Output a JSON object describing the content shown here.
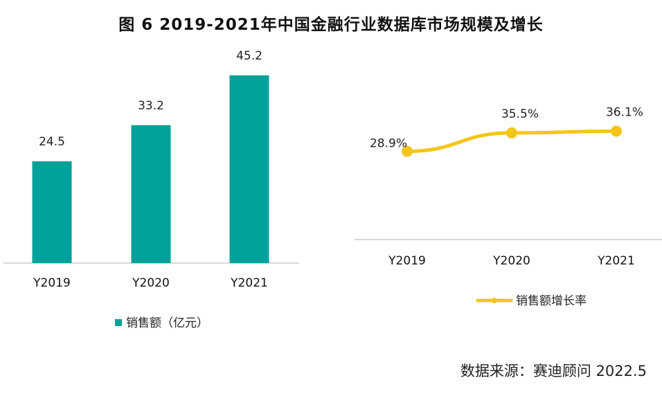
{
  "figure_title": "图 6  2019-2021年中国金融行业数据库市场规模及增长",
  "source_note": "数据来源：赛迪顾问  2022.5",
  "colors": {
    "bar": "#00a19a",
    "line": "#f5c518",
    "axis": "#cccccc"
  },
  "chart_data": [
    {
      "type": "bar",
      "categories": [
        "Y2019",
        "Y2020",
        "Y2021"
      ],
      "series": [
        {
          "name": "销售额（亿元）",
          "values": [
            24.5,
            33.2,
            45.2
          ],
          "labels": [
            "24.5",
            "33.2",
            "45.2"
          ]
        }
      ],
      "ylim": [
        0,
        50
      ],
      "grid": false,
      "legend": "bottom"
    },
    {
      "type": "line",
      "categories": [
        "Y2019",
        "Y2020",
        "Y2021"
      ],
      "series": [
        {
          "name": "销售额增长率",
          "values": [
            28.9,
            35.5,
            36.1
          ],
          "labels": [
            "28.9%",
            "35.5%",
            "36.1%"
          ]
        }
      ],
      "ylim": [
        0,
        40
      ],
      "grid": false,
      "legend": "bottom"
    }
  ]
}
